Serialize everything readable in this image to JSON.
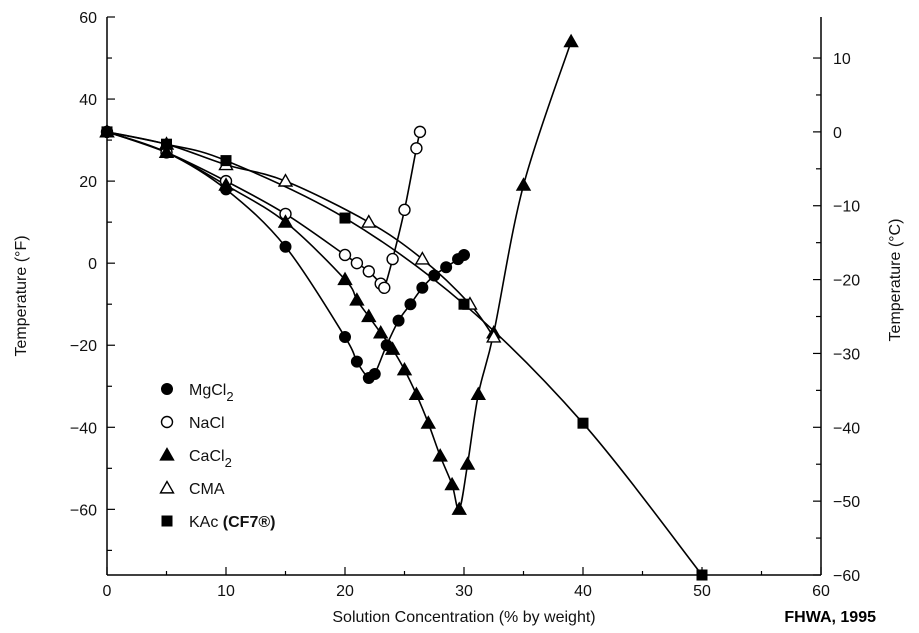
{
  "chart_data": {
    "type": "line",
    "title": "",
    "xlabel": "Solution Concentration (% by weight)",
    "ylabel_left": "Temperature (°F)",
    "ylabel_right": "Temperature (°C)",
    "source": "FHWA, 1995",
    "xlim": [
      0,
      60
    ],
    "ylim_left": [
      -76,
      60
    ],
    "x_ticks": [
      0,
      10,
      20,
      30,
      40,
      50,
      60
    ],
    "y_left_ticks": [
      60,
      40,
      20,
      0,
      -20,
      -40,
      -60
    ],
    "y_right_ticks": [
      10,
      0,
      -10,
      -20,
      -30,
      -40,
      -50,
      -60
    ],
    "grid": false,
    "legend_position": "lower-left",
    "series": [
      {
        "name": "MgCl₂",
        "legend_main": "MgCl",
        "legend_sub": "2",
        "marker": "filled-circle",
        "x": [
          0,
          5,
          10,
          15,
          20,
          21,
          22,
          22.5,
          23.5,
          24.5,
          25.5,
          26.5,
          27.5,
          28.5,
          29.5,
          30
        ],
        "y": [
          32,
          27,
          18,
          4,
          -18,
          -24,
          -28,
          -27,
          -20,
          -14,
          -10,
          -6,
          -3,
          -1,
          1,
          2
        ]
      },
      {
        "name": "NaCl",
        "legend_main": "NaCl",
        "legend_sub": "",
        "marker": "open-circle",
        "x": [
          0,
          5,
          10,
          15,
          20,
          21,
          22,
          23,
          23.3,
          24,
          25,
          26,
          26.3
        ],
        "y": [
          32,
          27,
          20,
          12,
          2,
          0,
          -2,
          -5,
          -6,
          1,
          13,
          28,
          32
        ]
      },
      {
        "name": "CaCl₂",
        "legend_main": "CaCl",
        "legend_sub": "2",
        "marker": "filled-triangle",
        "x": [
          0,
          5,
          10,
          15,
          20,
          21,
          22,
          23,
          24,
          25,
          26,
          27,
          28,
          29,
          29.6,
          30.3,
          31.2,
          32.5,
          35,
          39
        ],
        "y": [
          32,
          27,
          19,
          10,
          -4,
          -9,
          -13,
          -17,
          -21,
          -26,
          -32,
          -39,
          -47,
          -54,
          -60,
          -49,
          -32,
          -17,
          19,
          54
        ]
      },
      {
        "name": "CMA",
        "legend_main": "CMA",
        "legend_sub": "",
        "marker": "open-triangle",
        "x": [
          0,
          5,
          10,
          15,
          22,
          26.5,
          30.5,
          32.5
        ],
        "y": [
          32,
          29,
          24,
          20,
          10,
          1,
          -10,
          -18
        ]
      },
      {
        "name": "KAc (CF7®)",
        "legend_main": "KAc ",
        "legend_bold": "(CF7®)",
        "legend_sub": "",
        "marker": "filled-square",
        "x": [
          0,
          5,
          10,
          20,
          30,
          40,
          50
        ],
        "y": [
          32,
          29,
          25,
          11,
          -10,
          -39,
          -76
        ]
      }
    ]
  }
}
